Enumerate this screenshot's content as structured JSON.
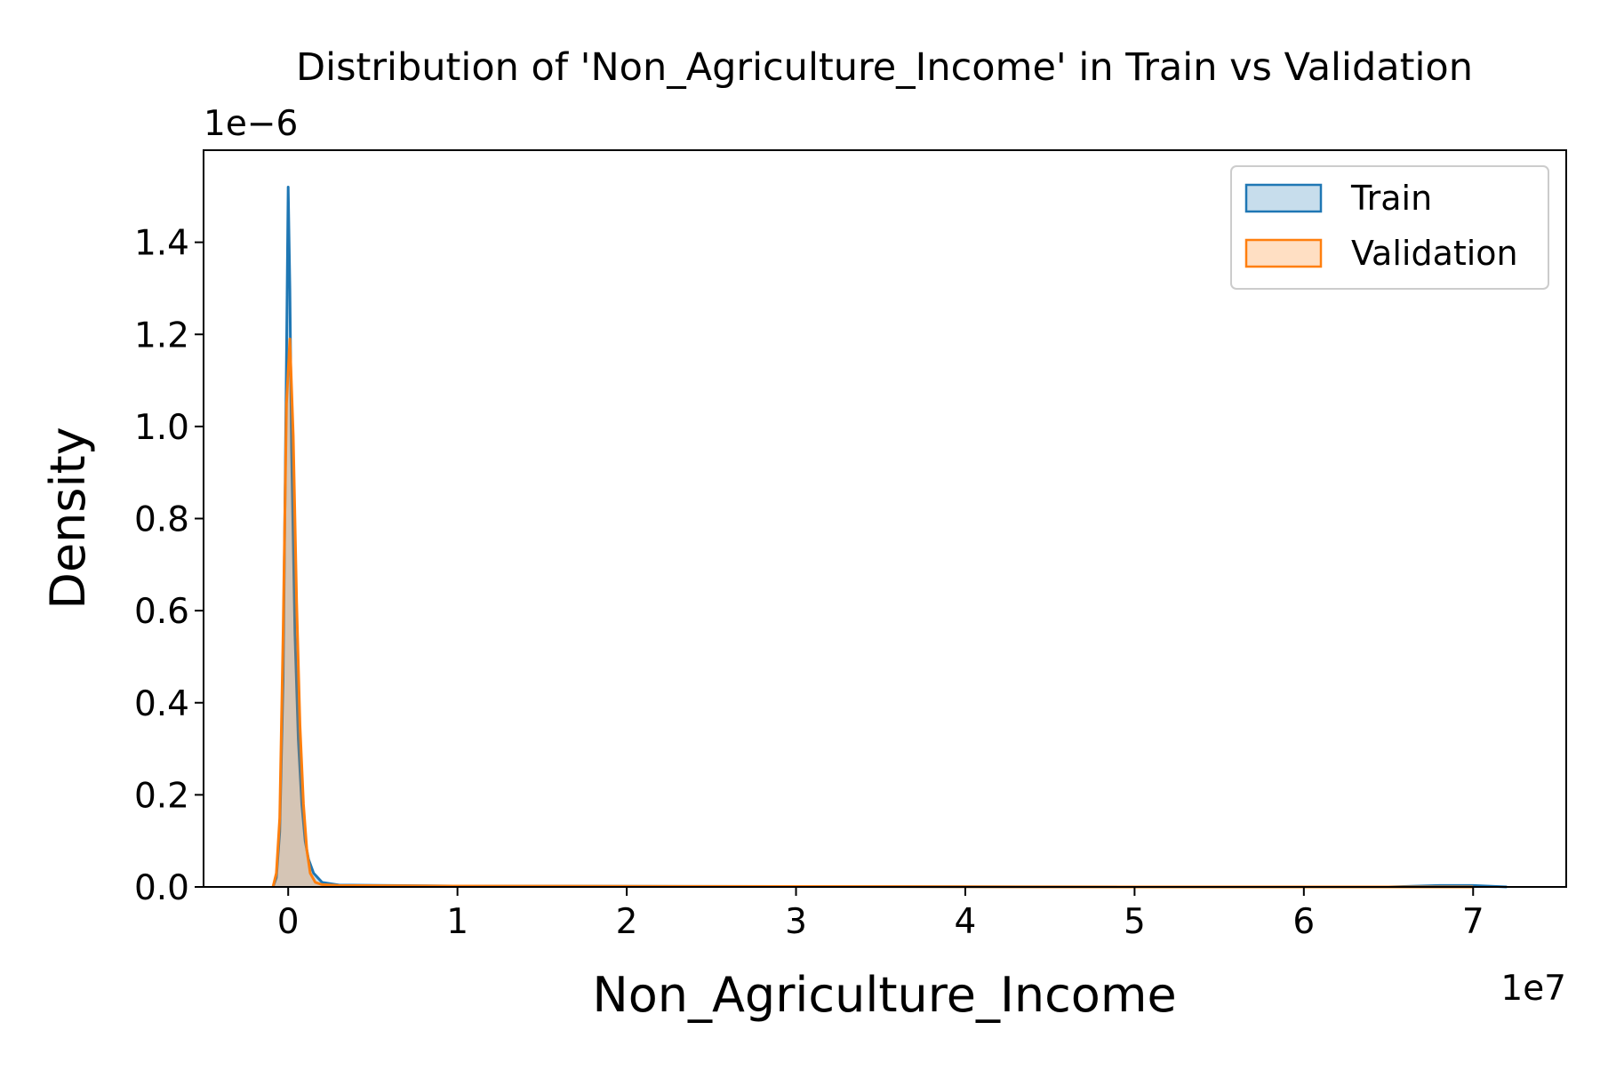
{
  "chart_data": {
    "type": "area",
    "title": "Distribution of 'Non_Agriculture_Income' in Train vs Validation",
    "xlabel": "Non_Agriculture_Income",
    "ylabel": "Density",
    "x_offset_text": "1e7",
    "y_offset_text": "1e−6",
    "xlim": [
      -0.5,
      7.55
    ],
    "ylim": [
      0,
      1.6
    ],
    "x_ticks": [
      0,
      1,
      2,
      3,
      4,
      5,
      6,
      7
    ],
    "x_tick_labels": [
      "0",
      "1",
      "2",
      "3",
      "4",
      "5",
      "6",
      "7"
    ],
    "y_ticks": [
      0.0,
      0.2,
      0.4,
      0.6,
      0.8,
      1.0,
      1.2,
      1.4
    ],
    "y_tick_labels": [
      "0.0",
      "0.2",
      "0.4",
      "0.6",
      "0.8",
      "1.0",
      "1.2",
      "1.4"
    ],
    "grid": false,
    "legend_position": "top-right",
    "series": [
      {
        "name": "Train",
        "color": "#1f77b4",
        "x": [
          -0.09,
          -0.07,
          -0.05,
          -0.03,
          -0.01,
          0.0,
          0.01,
          0.02,
          0.04,
          0.06,
          0.08,
          0.1,
          0.12,
          0.15,
          0.2,
          0.3,
          1.0,
          3.0,
          5.0,
          6.5,
          6.8,
          7.0,
          7.2
        ],
        "y": [
          0.0,
          0.02,
          0.12,
          0.45,
          1.15,
          1.52,
          1.3,
          0.95,
          0.55,
          0.32,
          0.18,
          0.1,
          0.06,
          0.03,
          0.01,
          0.004,
          0.002,
          0.001,
          0.0,
          0.0,
          0.003,
          0.003,
          0.0
        ]
      },
      {
        "name": "Validation",
        "color": "#ff7f0e",
        "x": [
          -0.09,
          -0.07,
          -0.05,
          -0.03,
          -0.01,
          0.01,
          0.03,
          0.05,
          0.07,
          0.09,
          0.11,
          0.13,
          0.16,
          0.2,
          0.3,
          1.0,
          3.0,
          5.0,
          7.0
        ],
        "y": [
          0.0,
          0.03,
          0.15,
          0.55,
          1.05,
          1.19,
          0.98,
          0.62,
          0.35,
          0.18,
          0.08,
          0.03,
          0.01,
          0.005,
          0.003,
          0.002,
          0.001,
          0.0,
          0.0
        ]
      }
    ]
  }
}
